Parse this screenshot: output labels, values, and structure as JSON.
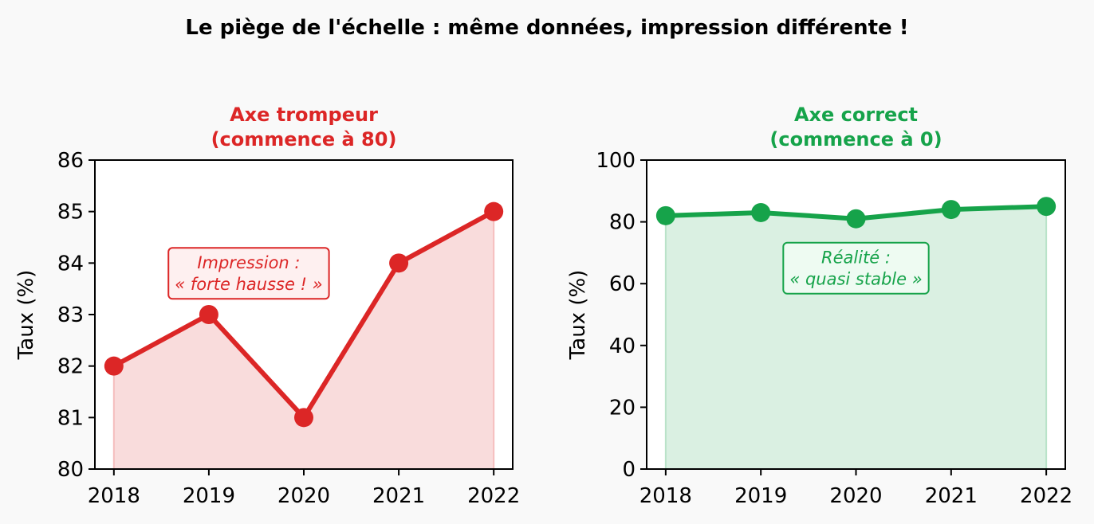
{
  "figure": {
    "title": "Le piège de l'échelle : même données, impression différente !"
  },
  "colors": {
    "background": "#f9f9f9",
    "red": "#dc2626",
    "red_fill": "#f9dcdc",
    "red_box_fill": "#fef0f0",
    "green": "#16a34a",
    "green_fill": "#dbefe2",
    "green_box_fill": "#eefbf2"
  },
  "chart_data": [
    {
      "type": "area",
      "title": "Axe trompeur\n(commence à 80)",
      "title_color": "#dc2626",
      "xlabel": "",
      "ylabel": "Taux (%)",
      "x": [
        "2018",
        "2019",
        "2020",
        "2021",
        "2022"
      ],
      "series": [
        {
          "values": [
            82,
            83,
            81,
            84,
            85
          ],
          "color": "#dc2626"
        }
      ],
      "ylim": [
        80,
        86
      ],
      "yticks": [
        80,
        81,
        82,
        83,
        84,
        85,
        86
      ],
      "grid": false,
      "annotation": {
        "text": "Impression :\n« forte hausse ! »",
        "at_x": 1.42,
        "at_y": 83.8
      }
    },
    {
      "type": "area",
      "title": "Axe correct\n(commence à 0)",
      "title_color": "#16a34a",
      "xlabel": "",
      "ylabel": "Taux (%)",
      "x": [
        "2018",
        "2019",
        "2020",
        "2021",
        "2022"
      ],
      "series": [
        {
          "values": [
            82,
            83,
            81,
            84,
            85
          ],
          "color": "#16a34a"
        }
      ],
      "ylim": [
        0,
        100
      ],
      "yticks": [
        0,
        20,
        40,
        60,
        80,
        100
      ],
      "grid": false,
      "annotation": {
        "text": "Réalité :\n« quasi stable »",
        "at_x": 2.0,
        "at_y": 65
      }
    }
  ]
}
